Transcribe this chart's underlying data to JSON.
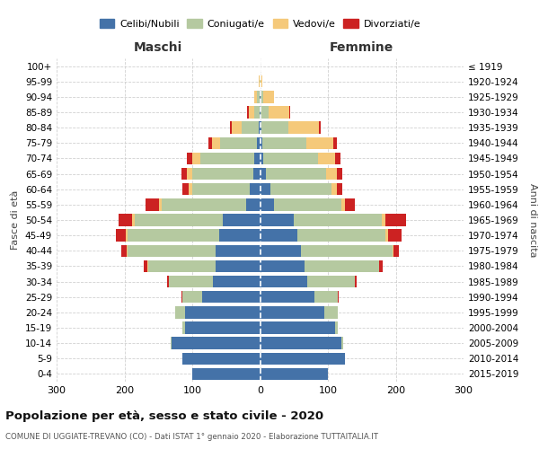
{
  "age_groups": [
    "0-4",
    "5-9",
    "10-14",
    "15-19",
    "20-24",
    "25-29",
    "30-34",
    "35-39",
    "40-44",
    "45-49",
    "50-54",
    "55-59",
    "60-64",
    "65-69",
    "70-74",
    "75-79",
    "80-84",
    "85-89",
    "90-94",
    "95-99",
    "100+"
  ],
  "birth_years": [
    "2015-2019",
    "2010-2014",
    "2005-2009",
    "2000-2004",
    "1995-1999",
    "1990-1994",
    "1985-1989",
    "1980-1984",
    "1975-1979",
    "1970-1974",
    "1965-1969",
    "1960-1964",
    "1955-1959",
    "1950-1954",
    "1945-1949",
    "1940-1944",
    "1935-1939",
    "1930-1934",
    "1925-1929",
    "1920-1924",
    "≤ 1919"
  ],
  "colors": {
    "celibi": "#4472a8",
    "coniugati": "#b5c9a0",
    "vedovi": "#f5c97a",
    "divorziati": "#cc2222"
  },
  "maschi": {
    "celibi": [
      100,
      115,
      130,
      110,
      110,
      85,
      70,
      65,
      65,
      60,
      55,
      20,
      15,
      10,
      8,
      4,
      2,
      1,
      1,
      0,
      0
    ],
    "coniugati": [
      0,
      0,
      2,
      5,
      15,
      30,
      65,
      100,
      130,
      135,
      130,
      125,
      85,
      90,
      80,
      55,
      25,
      8,
      3,
      1,
      0
    ],
    "vedovi": [
      0,
      0,
      0,
      0,
      0,
      0,
      0,
      1,
      2,
      3,
      4,
      4,
      5,
      8,
      12,
      12,
      15,
      8,
      4,
      1,
      0
    ],
    "divorziati": [
      0,
      0,
      0,
      0,
      0,
      1,
      2,
      5,
      8,
      15,
      20,
      20,
      10,
      8,
      8,
      5,
      2,
      2,
      0,
      0,
      0
    ]
  },
  "femmine": {
    "celibi": [
      100,
      125,
      120,
      110,
      95,
      80,
      70,
      65,
      60,
      55,
      50,
      20,
      15,
      8,
      5,
      3,
      2,
      1,
      1,
      0,
      0
    ],
    "coniugati": [
      0,
      0,
      2,
      5,
      20,
      35,
      70,
      110,
      135,
      130,
      130,
      100,
      90,
      90,
      80,
      65,
      40,
      12,
      4,
      1,
      0
    ],
    "vedovi": [
      0,
      0,
      0,
      0,
      0,
      0,
      0,
      1,
      2,
      4,
      5,
      5,
      8,
      15,
      25,
      40,
      45,
      30,
      15,
      2,
      1
    ],
    "divorziati": [
      0,
      0,
      0,
      0,
      0,
      1,
      2,
      5,
      8,
      20,
      30,
      15,
      8,
      8,
      8,
      5,
      2,
      2,
      0,
      0,
      0
    ]
  },
  "title": "Popolazione per età, sesso e stato civile - 2020",
  "subtitle": "COMUNE DI UGGIATE-TREVANO (CO) - Dati ISTAT 1° gennaio 2020 - Elaborazione TUTTAITALIA.IT",
  "xlim": 300,
  "background_color": "#ffffff",
  "grid_color": "#cccccc"
}
